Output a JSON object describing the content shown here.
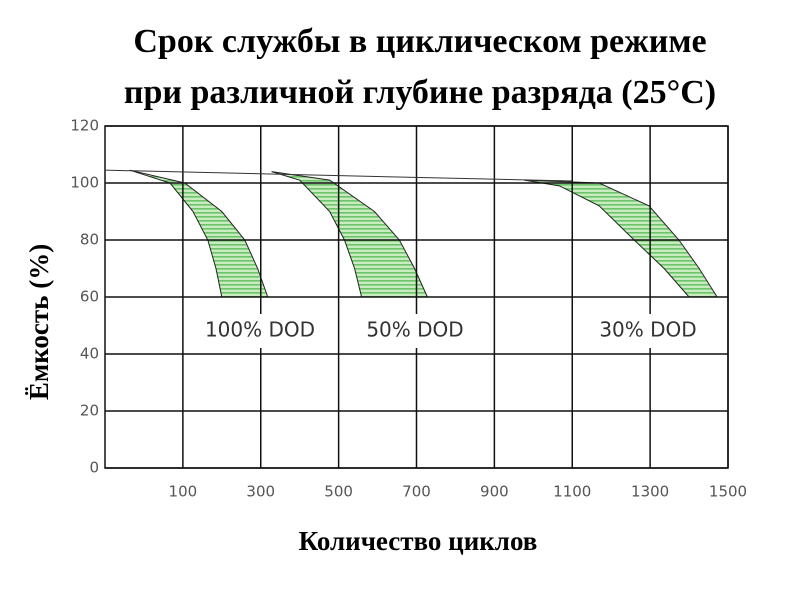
{
  "chart_data": {
    "type": "band",
    "title_lines": [
      "Срок службы в циклическом режиме",
      "при различной глубине разряда  (25°С)"
    ],
    "y_label": "Ёмкость (%)",
    "x_label": "Количество циклов",
    "xlim": [
      -100,
      1500
    ],
    "xticks": [
      100,
      300,
      500,
      700,
      900,
      1100,
      1300,
      1500
    ],
    "ylim": [
      0,
      120
    ],
    "yticks": [
      0,
      20,
      40,
      60,
      80,
      100,
      120
    ],
    "grid": true,
    "color": "#7fcf7a",
    "reference_line": {
      "x": [
        -100,
        1100
      ],
      "y": [
        104.5,
        100.7
      ]
    },
    "series": [
      {
        "name": "100% DOD",
        "inner": {
          "x": [
            -36,
            67,
            126,
            164,
            185,
            200
          ],
          "y": [
            104.5,
            100,
            90,
            80,
            70,
            60
          ]
        },
        "outer": {
          "x": [
            -36,
            105,
            200,
            259,
            292,
            318
          ],
          "y": [
            104.5,
            100,
            90,
            80,
            70,
            60
          ]
        }
      },
      {
        "name": "50% DOD",
        "inner": {
          "x": [
            328,
            400,
            477,
            515,
            541,
            559
          ],
          "y": [
            104,
            101,
            90,
            80,
            70,
            60
          ]
        },
        "outer": {
          "x": [
            328,
            477,
            592,
            656,
            695,
            728
          ],
          "y": [
            104,
            101,
            90,
            80,
            70,
            60
          ]
        }
      },
      {
        "name": "30% DOD",
        "inner": {
          "x": [
            977,
            1067,
            1169,
            1259,
            1336,
            1400
          ],
          "y": [
            101,
            99,
            92,
            80,
            70,
            60
          ]
        },
        "outer": {
          "x": [
            977,
            1169,
            1297,
            1374,
            1426,
            1472
          ],
          "y": [
            101,
            100,
            92,
            80,
            70,
            60
          ]
        }
      }
    ]
  }
}
